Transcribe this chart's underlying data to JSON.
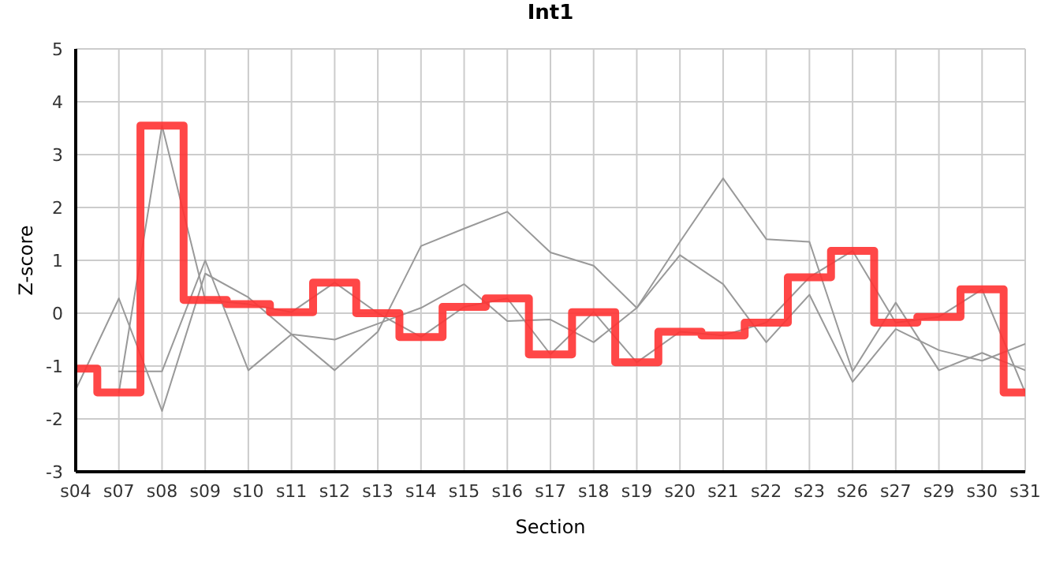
{
  "chart_data": {
    "type": "line",
    "title": "Int1",
    "xlabel": "Section",
    "ylabel": "Z-score",
    "categories": [
      "s04",
      "s07",
      "s08",
      "s09",
      "s10",
      "s11",
      "s12",
      "s13",
      "s14",
      "s15",
      "s16",
      "s17",
      "s18",
      "s19",
      "s20",
      "s21",
      "s22",
      "s23",
      "s26",
      "s27",
      "s29",
      "s30",
      "s31"
    ],
    "series": [
      {
        "color": "#999999",
        "values": [
          -1.45,
          0.28,
          -1.85,
          0.75,
          0.3,
          -0.4,
          -0.5,
          -0.2,
          0.1,
          0.55,
          -0.15,
          -0.12,
          -0.55,
          0.1,
          1.1,
          0.55,
          -0.55,
          0.35,
          -1.3,
          -0.3,
          -0.7,
          -0.9,
          -0.58
        ]
      },
      {
        "color": "#999999",
        "values": [
          null,
          -1.1,
          -1.1,
          1.0,
          -1.08,
          -0.4,
          -1.08,
          -0.35,
          1.27,
          1.6,
          1.92,
          1.15,
          0.9,
          0.1,
          1.35,
          2.55,
          1.4,
          1.35,
          -1.1,
          0.2,
          -1.08,
          -0.75,
          -1.08
        ]
      },
      {
        "color": "#999999",
        "values": [
          null,
          -1.5,
          3.55,
          0.25,
          0.17,
          0.02,
          0.58,
          0.0,
          -0.45,
          0.12,
          0.28,
          -0.78,
          0.02,
          -0.93,
          -0.35,
          -0.42,
          -0.18,
          0.68,
          1.18,
          -0.18,
          -0.07,
          0.45,
          -1.5
        ]
      },
      {
        "type": "step",
        "color": "#ff3333",
        "values": [
          -1.05,
          -1.5,
          3.55,
          0.25,
          0.17,
          0.02,
          0.58,
          0.0,
          -0.45,
          0.12,
          0.28,
          -0.78,
          0.02,
          -0.93,
          -0.35,
          -0.42,
          -0.18,
          0.68,
          1.18,
          -0.18,
          -0.07,
          0.45,
          -1.5
        ]
      }
    ],
    "ylim": [
      -3,
      5
    ],
    "yticks": [
      -3,
      -2,
      -1,
      0,
      1,
      2,
      3,
      4,
      5
    ],
    "grid": true,
    "legend": false,
    "marker": "none",
    "line_style": "solid"
  }
}
